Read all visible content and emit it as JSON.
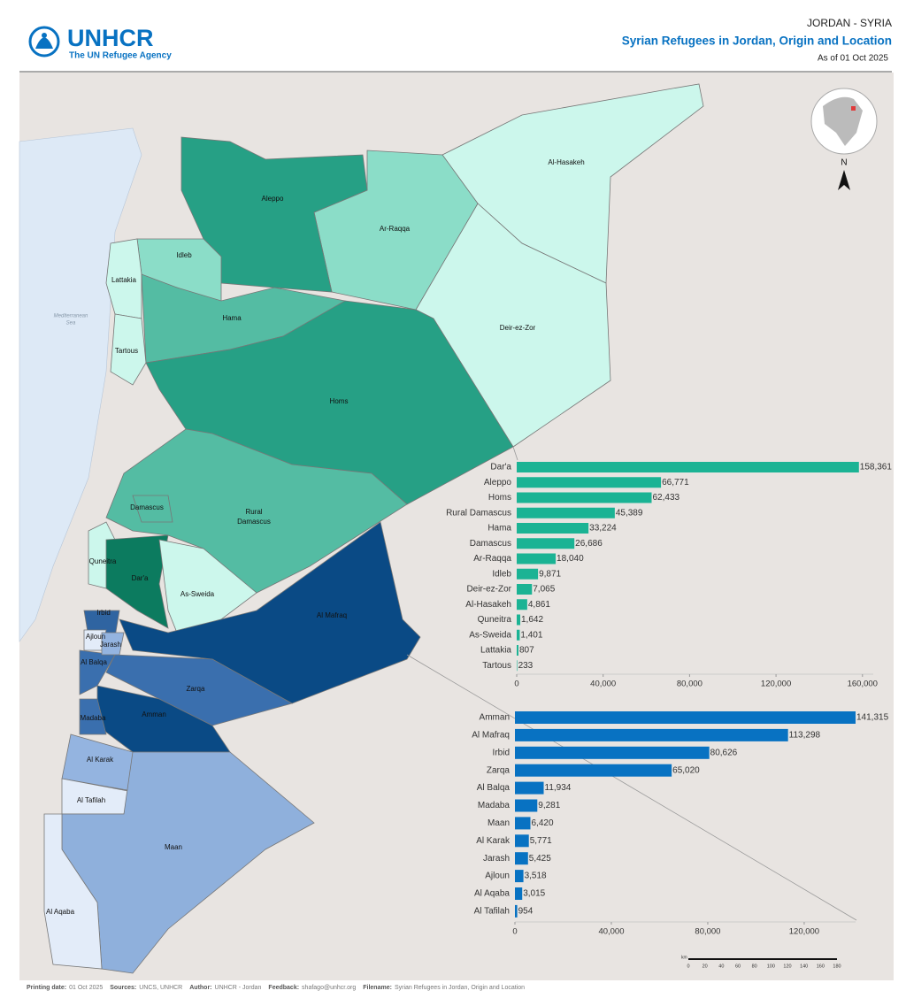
{
  "header": {
    "logo": "UNHCR",
    "logo_sub": "The UN Refugee Agency",
    "country": "JORDAN - SYRIA",
    "title": "Syrian Refugees in Jordan, Origin and Location",
    "date": "As of 01 Oct 2025"
  },
  "map": {
    "sea": [
      "Mediterranean",
      "Sea"
    ],
    "syria_labels": [
      "Al-Hasakeh",
      "Aleppo",
      "Ar-Raqqa",
      "Idleb",
      "Lattakia",
      "Hama",
      "Deir-ez-Zor",
      "Tartous",
      "Homs",
      "Damascus",
      "Quneitra",
      "Dar'a",
      "As-Sweida"
    ],
    "rural_damascus": [
      "Rural",
      "Damascus"
    ],
    "jordan_labels": [
      "Al Mafraq",
      "Irbid",
      "Ajloun",
      "Jarash",
      "Al Balqa",
      "Zarqa",
      "Madaba",
      "Amman",
      "Al Karak",
      "Al Tafilah",
      "Maan",
      "Al Aqaba"
    ],
    "north": "N",
    "scale": {
      "unit": "km",
      "ticks": [
        0,
        20,
        40,
        60,
        80,
        100,
        120,
        140,
        160,
        180
      ]
    }
  },
  "chart_data": [
    {
      "type": "bar",
      "orientation": "horizontal",
      "color": "#1bb394",
      "categories": [
        "Dar'a",
        "Aleppo",
        "Homs",
        "Rural Damascus",
        "Hama",
        "Damascus",
        "Ar-Raqqa",
        "Idleb",
        "Deir-ez-Zor",
        "Al-Hasakeh",
        "Quneitra",
        "As-Sweida",
        "Lattakia",
        "Tartous"
      ],
      "values": [
        158361,
        66771,
        62433,
        45389,
        33224,
        26686,
        18040,
        9871,
        7065,
        4861,
        1642,
        1401,
        807,
        233
      ],
      "value_labels": [
        "158,361",
        "66,771",
        "62,433",
        "45,389",
        "33,224",
        "26,686",
        "18,040",
        "9,871",
        "7,065",
        "4,861",
        "1,642",
        "1,401",
        "807",
        "233"
      ],
      "xlim": [
        0,
        165000
      ],
      "xticks": [
        0,
        {
          "value": 40000,
          "label": "40,000"
        },
        {
          "value": 80000,
          "label": "80,000"
        },
        {
          "value": 120000,
          "label": "120,000"
        },
        {
          "value": 160000,
          "label": "160,000"
        }
      ]
    },
    {
      "type": "bar",
      "orientation": "horizontal",
      "color": "#0872c2",
      "categories": [
        "Amman",
        "Al Mafraq",
        "Irbid",
        "Zarqa",
        "Al Balqa",
        "Madaba",
        "Maan",
        "Al Karak",
        "Jarash",
        "Ajloun",
        "Al Aqaba",
        "Al Tafilah"
      ],
      "values": [
        141315,
        113298,
        80626,
        65020,
        11934,
        9281,
        6420,
        5771,
        5425,
        3518,
        3015,
        954
      ],
      "value_labels": [
        "141,315",
        "113,298",
        "80,626",
        "65,020",
        "11,934",
        "9,281",
        "6,420",
        "5,771",
        "5,425",
        "3,518",
        "3,015",
        "954"
      ],
      "xlim": [
        0,
        141315
      ],
      "xticks": [
        0,
        {
          "value": 40000,
          "label": "40,000"
        },
        {
          "value": 80000,
          "label": "80,000"
        },
        {
          "value": 120000,
          "label": "120,000"
        }
      ]
    }
  ],
  "footer": [
    {
      "key": "Printing date:",
      "value": "01 Oct 2025"
    },
    {
      "key": "Sources:",
      "value": "UNCS, UNHCR"
    },
    {
      "key": "Author:",
      "value": "UNHCR - Jordan"
    },
    {
      "key": "Feedback:",
      "value": "shafago@unhcr.org"
    },
    {
      "key": "Filename:",
      "value": "Syrian Refugees in Jordan, Origin and Location"
    }
  ]
}
